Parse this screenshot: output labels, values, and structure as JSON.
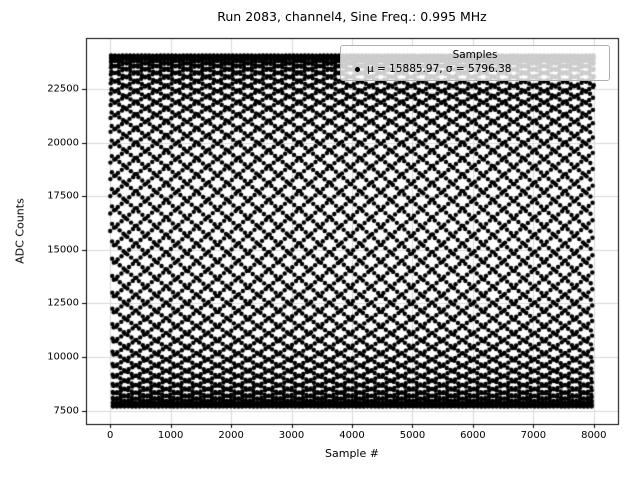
{
  "chart_data": {
    "type": "scatter",
    "title": "Run 2083, channel4, Sine Freq.: 0.995 MHz",
    "xlabel": "Sample #",
    "ylabel": "ADC Counts",
    "run": 2083,
    "channel": "channel4",
    "sine_freq_mhz": 0.995,
    "n_samples": 8000,
    "mean": 15885.97,
    "std": 5796.38,
    "amplitude": 8197.33,
    "cycles_per_sample": 0.01592,
    "phase": 0,
    "marker_color": "#000000",
    "marker_radius": 2.2,
    "xlim": [
      -400,
      8400
    ],
    "ylim": [
      6870,
      24900
    ],
    "x_ticks": [
      0,
      1000,
      2000,
      3000,
      4000,
      5000,
      6000,
      7000,
      8000
    ],
    "y_ticks": [
      7500,
      10000,
      12500,
      15000,
      17500,
      20000,
      22500
    ],
    "grid": true,
    "grid_color": "#d9d9d9",
    "axis_color": "#000000",
    "legend": {
      "position": "upper right",
      "title": "Samples",
      "entry_label": "μ = 15885.97, σ = 5796.38"
    }
  }
}
